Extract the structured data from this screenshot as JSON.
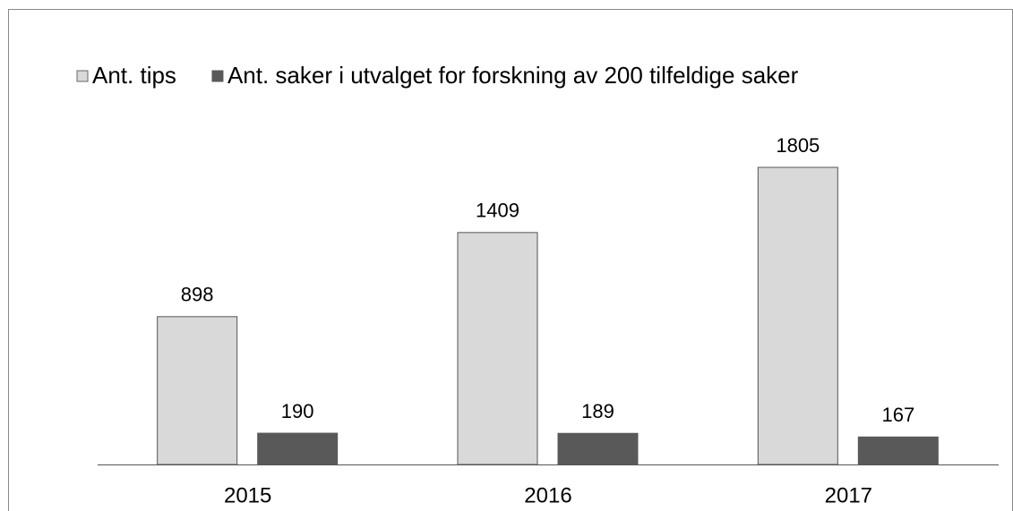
{
  "chart_data": {
    "type": "bar",
    "categories": [
      "2015",
      "2016",
      "2017"
    ],
    "series": [
      {
        "name": "Ant. tips",
        "color": "#d9d9d9",
        "values": [
          898,
          1409,
          1805
        ]
      },
      {
        "name": "Ant. saker i utvalget for forskning av 200 tilfeldige saker",
        "color": "#595959",
        "values": [
          190,
          189,
          167
        ]
      }
    ],
    "legend": "top"
  }
}
